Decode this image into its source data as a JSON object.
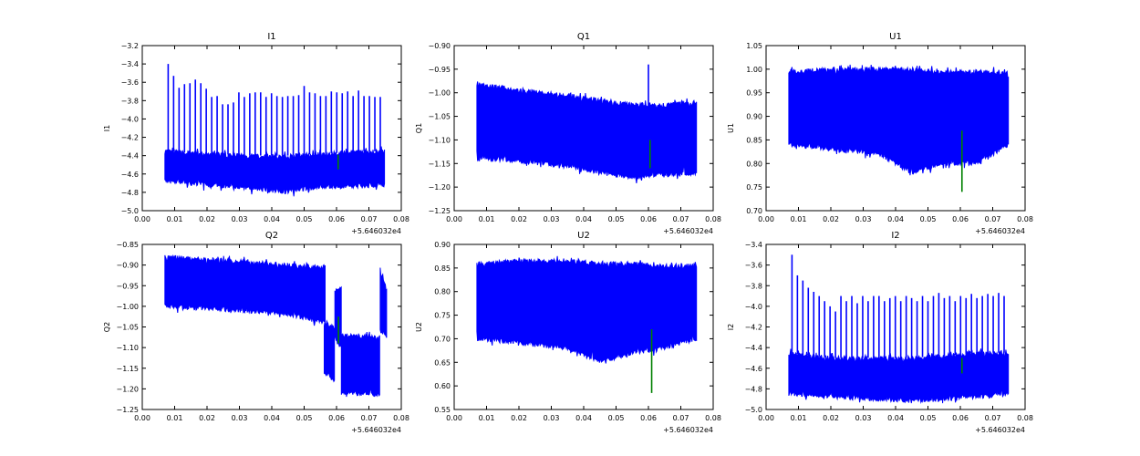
{
  "chart_data": [
    {
      "type": "line",
      "title": "I1",
      "ylabel": "I1",
      "xlim": [
        0,
        0.08
      ],
      "ylim": [
        -5.0,
        -3.2
      ],
      "xticks": [
        "0.00",
        "0.01",
        "0.02",
        "0.03",
        "0.04",
        "0.05",
        "0.06",
        "0.07",
        "0.08"
      ],
      "yticks": [
        "−5.0",
        "−4.8",
        "−4.6",
        "−4.4",
        "−4.2",
        "−4.0",
        "−3.8",
        "−3.6",
        "−3.4",
        "−3.2"
      ],
      "x_offset": "+5.646032e4",
      "series_color": "#0000ff",
      "marker_color": "#008000",
      "bands": [
        {
          "x": [
            0.007,
            0.02,
            0.035,
            0.045,
            0.055,
            0.065,
            0.075
          ],
          "upper": [
            -4.35,
            -4.38,
            -4.4,
            -4.4,
            -4.38,
            -4.36,
            -4.35
          ],
          "lower": [
            -4.68,
            -4.72,
            -4.76,
            -4.8,
            -4.74,
            -4.74,
            -4.72
          ]
        }
      ],
      "spikes": {
        "x_start": 0.008,
        "x_step": 0.00168,
        "y": [
          -3.4,
          -3.53,
          -3.66,
          -3.62,
          -3.61,
          -3.57,
          -3.61,
          -3.67,
          -3.76,
          -3.75,
          -3.84,
          -3.84,
          -3.82,
          -3.71,
          -3.76,
          -3.72,
          -3.71,
          -3.71,
          -3.76,
          -3.72,
          -3.75,
          -3.76,
          -3.75,
          -3.75,
          -3.74,
          -3.64,
          -3.71,
          -3.72,
          -3.75,
          -3.75,
          -3.7,
          -3.71,
          -3.72,
          -3.7,
          -3.75,
          -3.69,
          -3.75,
          -3.75,
          -3.76,
          -3.76
        ]
      },
      "marker": {
        "x": 0.0605,
        "y": [
          -4.39,
          -4.55
        ]
      }
    },
    {
      "type": "line",
      "title": "Q1",
      "ylabel": "Q1",
      "xlim": [
        0,
        0.08
      ],
      "ylim": [
        -1.25,
        -0.9
      ],
      "xticks": [
        "0.00",
        "0.01",
        "0.02",
        "0.03",
        "0.04",
        "0.05",
        "0.06",
        "0.07",
        "0.08"
      ],
      "yticks": [
        "−1.25",
        "−1.20",
        "−1.15",
        "−1.10",
        "−1.05",
        "−1.00",
        "−0.95",
        "−0.90"
      ],
      "x_offset": "+5.646032e4",
      "series_color": "#0000ff",
      "marker_color": "#008000",
      "bands": [
        {
          "x": [
            0.007,
            0.02,
            0.035,
            0.045,
            0.055,
            0.065,
            0.075
          ],
          "upper": [
            -0.98,
            -0.995,
            -1.005,
            -1.015,
            -1.025,
            -1.025,
            -1.02
          ],
          "lower": [
            -1.14,
            -1.145,
            -1.155,
            -1.17,
            -1.18,
            -1.175,
            -1.17
          ]
        }
      ],
      "spikes": {
        "x_start": 0.06,
        "x_step": 0.001,
        "y": [
          -0.94
        ]
      },
      "marker": {
        "x": 0.0605,
        "y": [
          -1.1,
          -1.16
        ]
      }
    },
    {
      "type": "line",
      "title": "U1",
      "ylabel": "U1",
      "xlim": [
        0,
        0.08
      ],
      "ylim": [
        0.7,
        1.05
      ],
      "xticks": [
        "0.00",
        "0.01",
        "0.02",
        "0.03",
        "0.04",
        "0.05",
        "0.06",
        "0.07",
        "0.08"
      ],
      "yticks": [
        "0.70",
        "0.75",
        "0.80",
        "0.85",
        "0.90",
        "0.95",
        "1.00",
        "1.05"
      ],
      "x_offset": "+5.646032e4",
      "series_color": "#0000ff",
      "marker_color": "#008000",
      "bands": [
        {
          "x": [
            0.007,
            0.02,
            0.035,
            0.045,
            0.055,
            0.065,
            0.075
          ],
          "upper": [
            0.995,
            1.0,
            1.0,
            1.0,
            0.995,
            0.995,
            0.995
          ],
          "lower": [
            0.84,
            0.83,
            0.82,
            0.78,
            0.8,
            0.8,
            0.84
          ]
        }
      ],
      "spikes": {
        "x_start": 0.045,
        "x_step": 0.004,
        "y": []
      },
      "marker": {
        "x": 0.0605,
        "y": [
          0.87,
          0.74
        ]
      }
    },
    {
      "type": "line",
      "title": "Q2",
      "ylabel": "Q2",
      "xlim": [
        0,
        0.08
      ],
      "ylim": [
        -1.25,
        -0.85
      ],
      "xticks": [
        "0.00",
        "0.01",
        "0.02",
        "0.03",
        "0.04",
        "0.05",
        "0.06",
        "0.07",
        "0.08"
      ],
      "yticks": [
        "−1.25",
        "−1.20",
        "−1.15",
        "−1.10",
        "−1.05",
        "−1.00",
        "−0.95",
        "−0.90",
        "−0.85"
      ],
      "x_offset": "+5.646032e4",
      "series_color": "#0000ff",
      "marker_color": "#008000",
      "bands": [
        {
          "x": [
            0.007,
            0.03,
            0.045,
            0.0565
          ],
          "upper": [
            -0.88,
            -0.89,
            -0.9,
            -0.905
          ],
          "lower": [
            -1.0,
            -1.01,
            -1.02,
            -1.04
          ]
        },
        {
          "x": [
            0.0562,
            0.0595
          ],
          "upper": [
            -1.04,
            -1.05
          ],
          "lower": [
            -1.16,
            -1.18
          ]
        },
        {
          "x": [
            0.0595,
            0.0615
          ],
          "upper": [
            -0.965,
            -0.955
          ],
          "lower": [
            -1.08,
            -1.1
          ]
        },
        {
          "x": [
            0.0615,
            0.0735
          ],
          "upper": [
            -1.07,
            -1.075
          ],
          "lower": [
            -1.21,
            -1.215
          ]
        },
        {
          "x": [
            0.0735,
            0.0755
          ],
          "upper": [
            -0.915,
            -0.96
          ],
          "lower": [
            -1.06,
            -1.075
          ]
        }
      ],
      "spikes": {
        "x_start": 0.0565,
        "x_step": 0.001,
        "y": []
      },
      "marker": {
        "x": 0.0606,
        "y": [
          -1.025,
          -1.09
        ]
      }
    },
    {
      "type": "line",
      "title": "U2",
      "ylabel": "U2",
      "xlim": [
        0,
        0.08
      ],
      "ylim": [
        0.55,
        0.9
      ],
      "xticks": [
        "0.00",
        "0.01",
        "0.02",
        "0.03",
        "0.04",
        "0.05",
        "0.06",
        "0.07",
        "0.08"
      ],
      "yticks": [
        "0.55",
        "0.60",
        "0.65",
        "0.70",
        "0.75",
        "0.80",
        "0.85",
        "0.90"
      ],
      "x_offset": "+5.646032e4",
      "series_color": "#0000ff",
      "marker_color": "#008000",
      "bands": [
        {
          "x": [
            0.007,
            0.02,
            0.035,
            0.045,
            0.055,
            0.065,
            0.075
          ],
          "upper": [
            0.86,
            0.865,
            0.865,
            0.86,
            0.86,
            0.855,
            0.855
          ],
          "lower": [
            0.7,
            0.69,
            0.68,
            0.65,
            0.67,
            0.68,
            0.7
          ]
        }
      ],
      "spikes": {
        "x_start": 0.052,
        "x_step": 0.001,
        "y": []
      },
      "marker": {
        "x": 0.061,
        "y": [
          0.72,
          0.585
        ]
      }
    },
    {
      "type": "line",
      "title": "I2",
      "ylabel": "I2",
      "xlim": [
        0,
        0.08
      ],
      "ylim": [
        -5.0,
        -3.4
      ],
      "xticks": [
        "0.00",
        "0.01",
        "0.02",
        "0.03",
        "0.04",
        "0.05",
        "0.06",
        "0.07",
        "0.08"
      ],
      "yticks": [
        "−5.0",
        "−4.8",
        "−4.6",
        "−4.4",
        "−4.2",
        "−4.0",
        "−3.8",
        "−3.6",
        "−3.4"
      ],
      "x_offset": "+5.646032e4",
      "series_color": "#0000ff",
      "marker_color": "#008000",
      "bands": [
        {
          "x": [
            0.007,
            0.02,
            0.035,
            0.045,
            0.055,
            0.065,
            0.075
          ],
          "upper": [
            -4.45,
            -4.5,
            -4.5,
            -4.5,
            -4.48,
            -4.45,
            -4.45
          ],
          "lower": [
            -4.85,
            -4.88,
            -4.9,
            -4.92,
            -4.9,
            -4.88,
            -4.85
          ]
        }
      ],
      "spikes": {
        "x_start": 0.008,
        "x_step": 0.00168,
        "y": [
          -3.5,
          -3.7,
          -3.75,
          -3.82,
          -3.86,
          -3.9,
          -3.95,
          -4.0,
          -4.05,
          -3.9,
          -3.95,
          -3.9,
          -3.97,
          -3.9,
          -3.95,
          -3.9,
          -3.9,
          -3.95,
          -3.92,
          -3.9,
          -3.95,
          -3.9,
          -3.92,
          -3.95,
          -3.9,
          -3.95,
          -3.9,
          -3.87,
          -3.92,
          -3.9,
          -3.95,
          -3.9,
          -3.92,
          -3.88,
          -3.92,
          -3.9,
          -3.88,
          -3.9,
          -3.87,
          -3.9
        ]
      },
      "marker": {
        "x": 0.0605,
        "y": [
          -4.5,
          -4.65
        ]
      }
    }
  ]
}
